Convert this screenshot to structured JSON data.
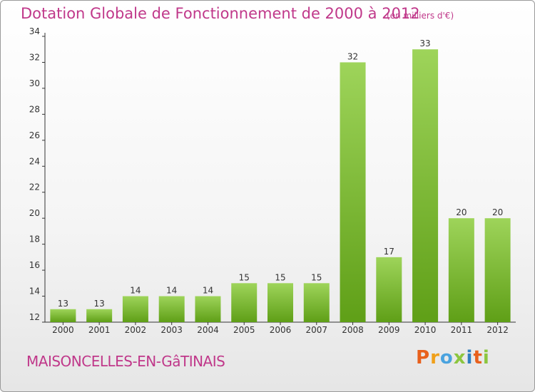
{
  "title": "Dotation Globale de Fonctionnement de 2000 à 2012",
  "unit_note": "(en milliers d'€)",
  "commune": "MAISONCELLES-EN-GâTINAIS",
  "logo": {
    "text": "Proxiti",
    "letter_colors": [
      "#e8601c",
      "#f0a01a",
      "#4aa3df",
      "#8cc63f",
      "#2f7fc1",
      "#e8601c",
      "#8cc63f"
    ]
  },
  "colors": {
    "title": "#c0388a",
    "bar_light": "#9ed45a",
    "bar_dark": "#5f9f17",
    "axis": "#333333"
  },
  "chart_data": {
    "type": "bar",
    "title": "Dotation Globale de Fonctionnement de 2000 à 2012",
    "categories": [
      "2000",
      "2001",
      "2002",
      "2003",
      "2004",
      "2005",
      "2006",
      "2007",
      "2008",
      "2009",
      "2010",
      "2011",
      "2012"
    ],
    "values": [
      13,
      13,
      14,
      14,
      14,
      15,
      15,
      15,
      32,
      17,
      33,
      20,
      20
    ],
    "ylim": [
      12,
      34
    ],
    "yticks": [
      12,
      14,
      16,
      18,
      20,
      22,
      24,
      26,
      28,
      30,
      32,
      34
    ],
    "xlabel": "",
    "ylabel": "",
    "grid": false,
    "legend": "none"
  }
}
